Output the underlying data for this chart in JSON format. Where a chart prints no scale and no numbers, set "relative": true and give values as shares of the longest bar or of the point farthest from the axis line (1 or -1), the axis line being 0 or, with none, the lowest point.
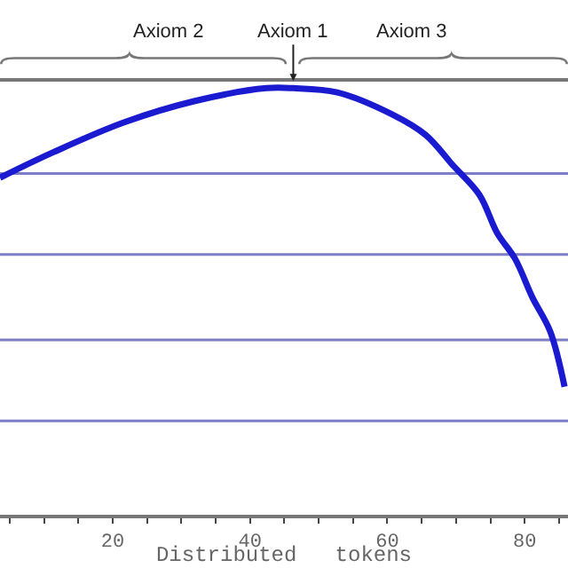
{
  "chart_data": {
    "type": "line",
    "relative": true,
    "xlabel": "Distributed   tokens",
    "x": [
      3.6,
      11.4,
      21.7,
      32.0,
      42.4,
      46.3,
      52.7,
      60.5,
      65.6,
      69.5,
      73.4,
      76.0,
      78.6,
      81.1,
      83.7,
      85.8
    ],
    "series": [
      {
        "color": "#1a1ad0",
        "values": [
          0.79,
          0.85,
          0.92,
          0.97,
          1.0,
          1.0,
          0.99,
          0.94,
          0.89,
          0.82,
          0.75,
          0.66,
          0.6,
          0.51,
          0.43,
          0.3
        ]
      }
    ],
    "xlim": [
      3.6,
      86.3
    ],
    "xticks": [
      {
        "value": 5,
        "label": null
      },
      {
        "value": 10,
        "label": null
      },
      {
        "value": 15,
        "label": null
      },
      20,
      {
        "value": 25,
        "label": null
      },
      {
        "value": 30,
        "label": null
      },
      {
        "value": 35,
        "label": null
      },
      40,
      {
        "value": 45,
        "label": null
      },
      {
        "value": 50,
        "label": null
      },
      {
        "value": 55,
        "label": null
      },
      60,
      {
        "value": 65,
        "label": null
      },
      {
        "value": 70,
        "label": null
      },
      {
        "value": 75,
        "label": null
      },
      80,
      {
        "value": 85,
        "label": null
      }
    ],
    "ref_lines": [
      {
        "axis": "y",
        "value": 0.22,
        "color": "#7d7dc8"
      },
      {
        "axis": "y",
        "value": 0.41,
        "color": "#7d7dc8"
      },
      {
        "axis": "y",
        "value": 0.61,
        "color": "#7d7dc8"
      },
      {
        "axis": "y",
        "value": 0.8,
        "color": "#7d7dc8"
      }
    ],
    "marker": "none",
    "line_style": "solid",
    "tick_labels": "x",
    "annotations": [
      "Axiom 2",
      {
        "text": "Axiom 1",
        "x": 46.3,
        "y": 1.0
      },
      "Axiom 3"
    ]
  }
}
